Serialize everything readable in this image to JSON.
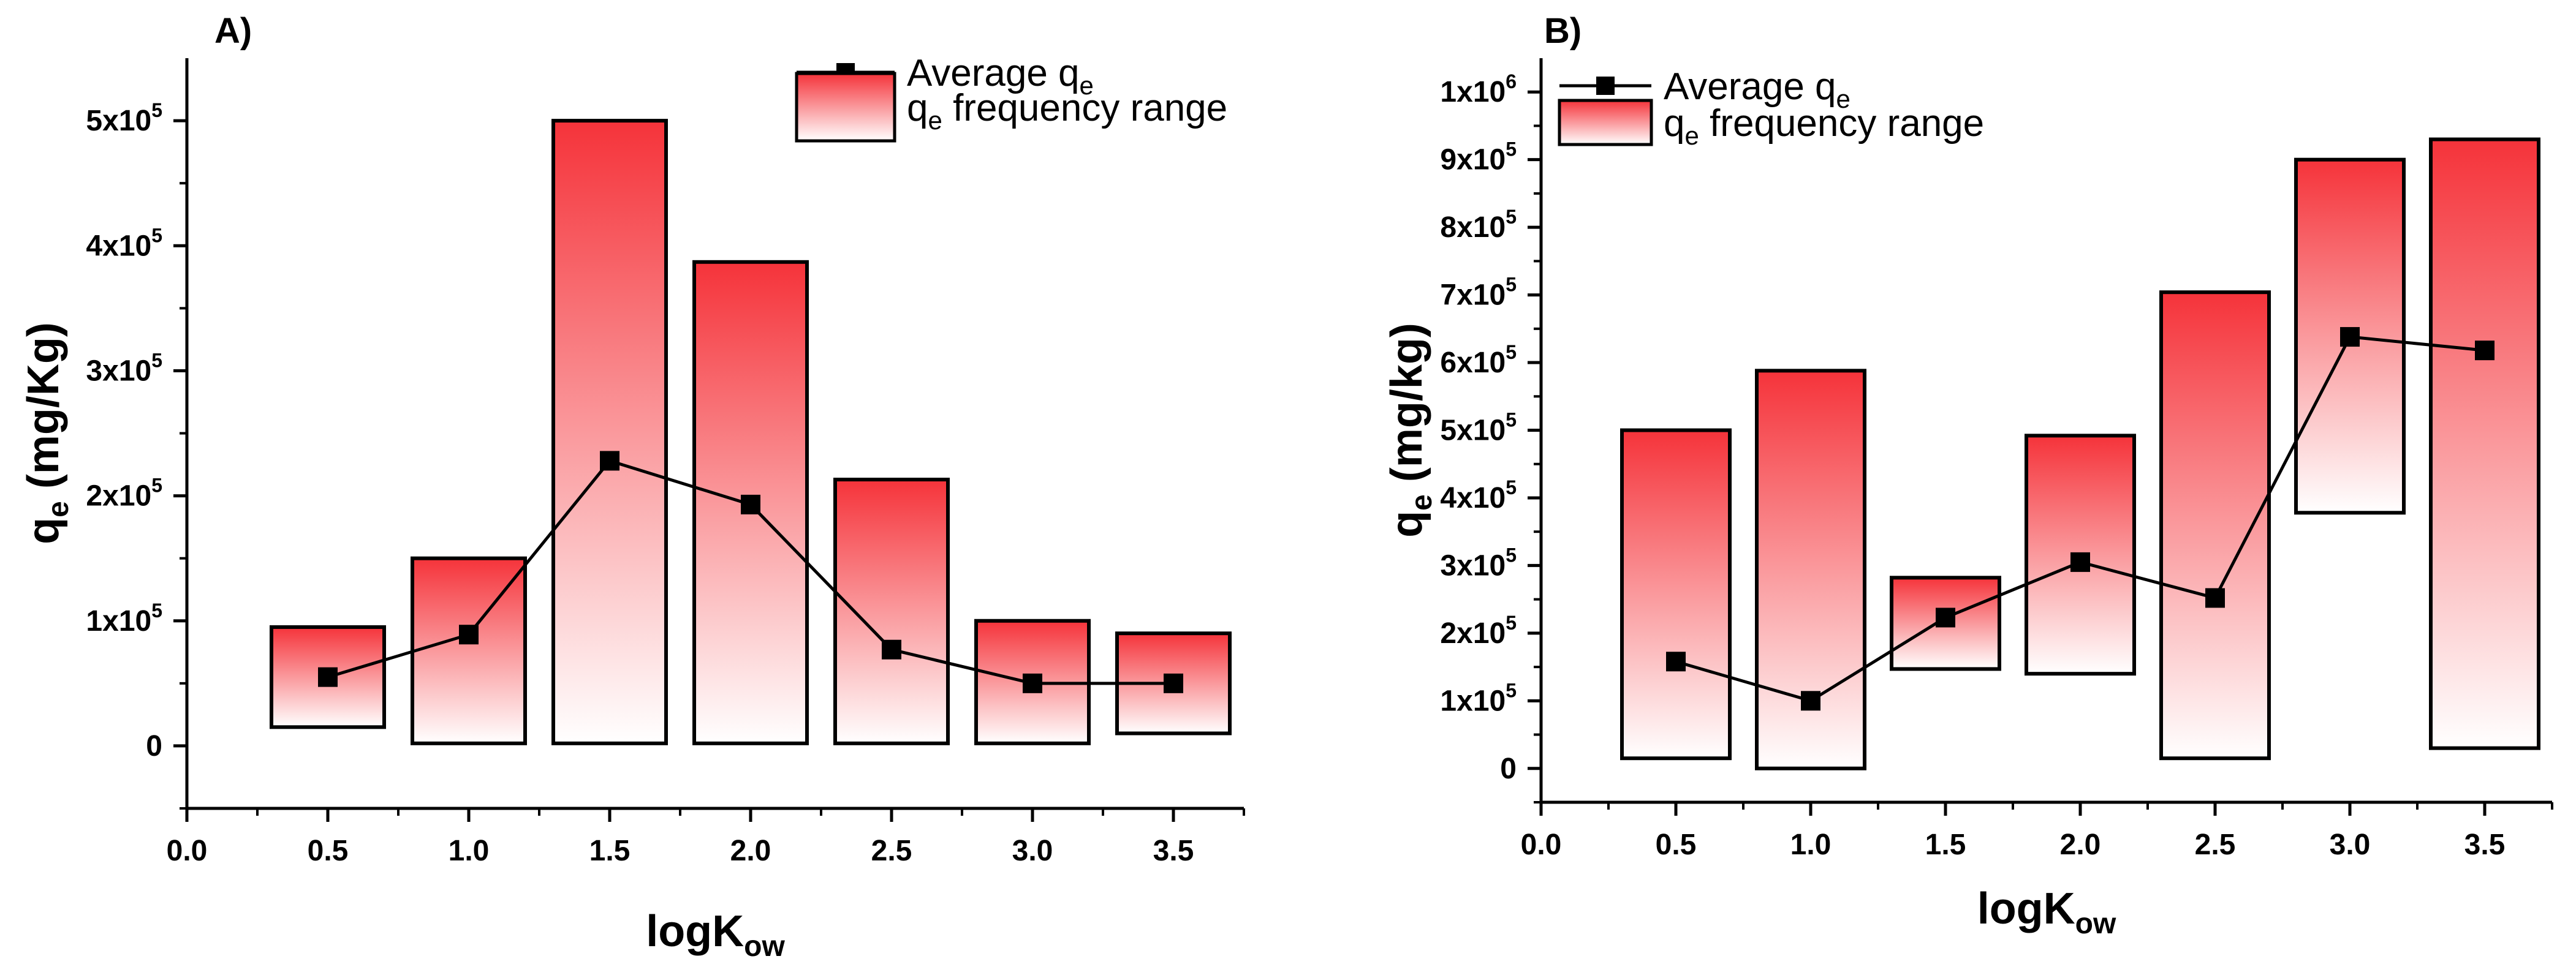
{
  "chart_data": [
    {
      "type": "bar",
      "panel_label": "A)",
      "xlabel": {
        "main": "logK",
        "sub": "ow"
      },
      "ylabel": {
        "main": "q",
        "sub": "e",
        "tail": " (mg/Kg)"
      },
      "xlim": [
        0.0,
        3.75
      ],
      "ylim": [
        -50000,
        550000
      ],
      "x_ticks": [
        0.0,
        0.5,
        1.0,
        1.5,
        2.0,
        2.5,
        3.0,
        3.5
      ],
      "x_tick_labels": [
        "0.0",
        "0.5",
        "1.0",
        "1.5",
        "2.0",
        "2.5",
        "3.0",
        "3.5"
      ],
      "y_ticks": [
        {
          "value": 0,
          "base": "0",
          "exp": ""
        },
        {
          "value": 100000,
          "base": "1x10",
          "exp": "5"
        },
        {
          "value": 200000,
          "base": "2x10",
          "exp": "5"
        },
        {
          "value": 300000,
          "base": "3x10",
          "exp": "5"
        },
        {
          "value": 400000,
          "base": "4x10",
          "exp": "5"
        },
        {
          "value": 500000,
          "base": "5x10",
          "exp": "5"
        }
      ],
      "legend": {
        "position": "top-right",
        "average": {
          "main": "Average q",
          "sub": "e"
        },
        "range": {
          "main": "q",
          "sub": "e",
          "tail": " frequency range"
        }
      },
      "bar_width": 0.4,
      "ranges": [
        {
          "x": 0.5,
          "low": 15000,
          "high": 95000
        },
        {
          "x": 1.0,
          "low": 2000,
          "high": 150000
        },
        {
          "x": 1.5,
          "low": 2000,
          "high": 500000
        },
        {
          "x": 2.0,
          "low": 2000,
          "high": 387000
        },
        {
          "x": 2.5,
          "low": 2000,
          "high": 213000
        },
        {
          "x": 3.0,
          "low": 2000,
          "high": 100000
        },
        {
          "x": 3.5,
          "low": 10000,
          "high": 90000
        }
      ],
      "average": [
        {
          "x": 0.5,
          "y": 55000
        },
        {
          "x": 1.0,
          "y": 89000
        },
        {
          "x": 1.5,
          "y": 228000
        },
        {
          "x": 2.0,
          "y": 193000
        },
        {
          "x": 2.5,
          "y": 77000
        },
        {
          "x": 3.0,
          "y": 50000
        },
        {
          "x": 3.5,
          "y": 50000
        }
      ],
      "colors": {
        "bar_top": "#f5333a",
        "bar_bottom": "#ffffff",
        "outline": "#000000",
        "line": "#000000"
      }
    },
    {
      "type": "bar",
      "panel_label": "B)",
      "xlabel": {
        "main": "logK",
        "sub": "ow"
      },
      "ylabel": {
        "main": "q",
        "sub": "e",
        "tail": " (mg/kg)"
      },
      "xlim": [
        0.0,
        3.75
      ],
      "ylim": [
        -50000,
        1050000
      ],
      "x_ticks": [
        0.0,
        0.5,
        1.0,
        1.5,
        2.0,
        2.5,
        3.0,
        3.5
      ],
      "x_tick_labels": [
        "0.0",
        "0.5",
        "1.0",
        "1.5",
        "2.0",
        "2.5",
        "3.0",
        "3.5"
      ],
      "y_ticks": [
        {
          "value": 0,
          "base": "0",
          "exp": ""
        },
        {
          "value": 100000,
          "base": "1x10",
          "exp": "5"
        },
        {
          "value": 200000,
          "base": "2x10",
          "exp": "5"
        },
        {
          "value": 300000,
          "base": "3x10",
          "exp": "5"
        },
        {
          "value": 400000,
          "base": "4x10",
          "exp": "5"
        },
        {
          "value": 500000,
          "base": "5x10",
          "exp": "5"
        },
        {
          "value": 600000,
          "base": "6x10",
          "exp": "5"
        },
        {
          "value": 700000,
          "base": "7x10",
          "exp": "5"
        },
        {
          "value": 800000,
          "base": "8x10",
          "exp": "5"
        },
        {
          "value": 900000,
          "base": "9x10",
          "exp": "5"
        },
        {
          "value": 1000000,
          "base": "1x10",
          "exp": "6"
        }
      ],
      "legend": {
        "position": "top-left",
        "average": {
          "main": "Average q",
          "sub": "e"
        },
        "range": {
          "main": "q",
          "sub": "e",
          "tail": " frequency range"
        }
      },
      "bar_width": 0.4,
      "ranges": [
        {
          "x": 0.5,
          "low": 15000,
          "high": 500000
        },
        {
          "x": 1.0,
          "low": 0,
          "high": 588000
        },
        {
          "x": 1.5,
          "low": 147000,
          "high": 282000
        },
        {
          "x": 2.0,
          "low": 140000,
          "high": 492000
        },
        {
          "x": 2.5,
          "low": 15000,
          "high": 704000
        },
        {
          "x": 3.0,
          "low": 378000,
          "high": 900000
        },
        {
          "x": 3.5,
          "low": 30000,
          "high": 930000
        }
      ],
      "average": [
        {
          "x": 0.5,
          "y": 158000
        },
        {
          "x": 1.0,
          "y": 100000
        },
        {
          "x": 1.5,
          "y": 223000
        },
        {
          "x": 2.0,
          "y": 305000
        },
        {
          "x": 2.5,
          "y": 252000
        },
        {
          "x": 3.0,
          "y": 638000
        },
        {
          "x": 3.5,
          "y": 618000
        }
      ],
      "colors": {
        "bar_top": "#f5333a",
        "bar_bottom": "#ffffff",
        "outline": "#000000",
        "line": "#000000"
      }
    }
  ]
}
